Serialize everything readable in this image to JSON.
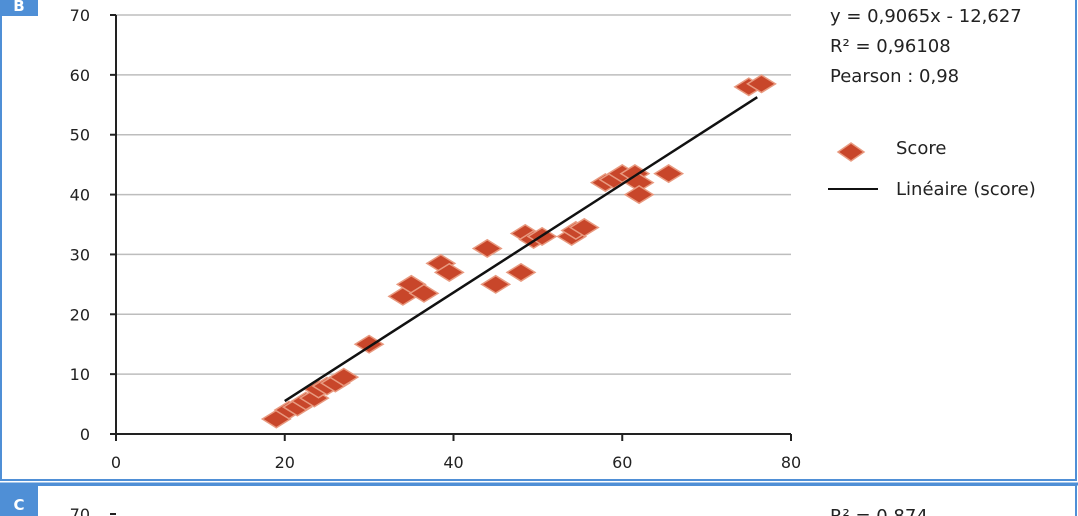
{
  "colors": {
    "marker_fill": "#c8462a",
    "marker_edge": "#e89a80",
    "trend_line": "#111111",
    "grid": "#bdbdbd",
    "panel_border": "#4f8fd6",
    "panel_tag": "#4f8fd6"
  },
  "panels": {
    "b": {
      "tag": "B"
    },
    "c": {
      "tag": "C",
      "y_top_tick": "70",
      "r2": "R² = 0,874"
    }
  },
  "chart_data": [
    {
      "type": "scatter",
      "panel": "B",
      "title": "",
      "xlabel": "",
      "ylabel": "",
      "xlim": [
        0,
        80
      ],
      "ylim": [
        0,
        70
      ],
      "x_ticks": [
        "0",
        "20",
        "40",
        "60",
        "80"
      ],
      "y_ticks": [
        "0",
        "10",
        "20",
        "30",
        "40",
        "50",
        "60",
        "70"
      ],
      "grid": "horizontal",
      "legend_position": "right",
      "legend": [
        {
          "label": "Score",
          "marker": "diamond"
        },
        {
          "label": "Linéaire (score)",
          "marker": "line"
        }
      ],
      "annotations": {
        "equation": "y = 0,9065x - 12,627",
        "r2": "R² = 0,96108",
        "pearson": "Pearson : 0,98"
      },
      "series": [
        {
          "name": "Score",
          "points": [
            [
              19,
              2.5
            ],
            [
              20.5,
              4
            ],
            [
              21.5,
              4.5
            ],
            [
              22.5,
              5.5
            ],
            [
              23.5,
              6
            ],
            [
              24,
              7.5
            ],
            [
              25,
              8
            ],
            [
              26,
              8.5
            ],
            [
              27,
              9.5
            ],
            [
              30,
              15
            ],
            [
              34,
              23
            ],
            [
              35,
              25
            ],
            [
              36.5,
              23.5
            ],
            [
              38.5,
              28.5
            ],
            [
              39.5,
              27
            ],
            [
              44,
              31
            ],
            [
              45,
              25
            ],
            [
              48,
              27
            ],
            [
              48.5,
              33.5
            ],
            [
              49.5,
              32.5
            ],
            [
              50.5,
              33
            ],
            [
              54,
              33
            ],
            [
              54.5,
              34
            ],
            [
              55.5,
              34.5
            ],
            [
              58,
              42
            ],
            [
              59,
              42.5
            ],
            [
              60,
              43.5
            ],
            [
              61.5,
              43.5
            ],
            [
              62,
              42
            ],
            [
              62,
              40
            ],
            [
              65.5,
              43.5
            ],
            [
              75,
              58
            ],
            [
              76.5,
              58.5
            ]
          ]
        },
        {
          "name": "Linéaire (score)",
          "type": "line",
          "fit": {
            "slope": 0.9065,
            "intercept": -12.627,
            "x_range": [
              20,
              76
            ]
          }
        }
      ]
    }
  ]
}
